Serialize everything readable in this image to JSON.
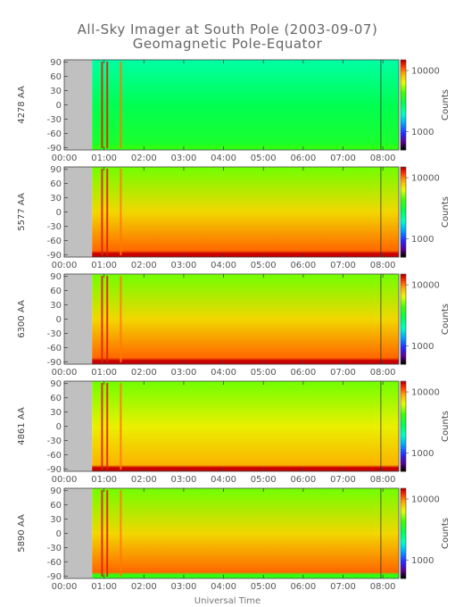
{
  "chart_data": {
    "type": "heatmap",
    "title": "All-Sky Imager at South Pole (2003-09-07)",
    "subtitle": "Geomagnetic Pole-Equator",
    "xlabel": "Universal Time",
    "x_ticks": [
      "00:00",
      "01:00",
      "02:00",
      "03:00",
      "04:00",
      "05:00",
      "06:00",
      "07:00",
      "08:00"
    ],
    "x_range_hours": [
      0,
      8.4
    ],
    "y_ticks": [
      90,
      60,
      30,
      0,
      -30,
      -60,
      -90
    ],
    "y_range": [
      -95,
      95
    ],
    "data_start_hour": 0.7,
    "spike_hours": [
      0.95,
      1.08,
      1.42
    ],
    "vline_hour": 7.95,
    "colorbar": {
      "ticks": [
        "10000",
        "1000"
      ],
      "label": "Counts",
      "log_range": [
        500,
        15000
      ]
    },
    "panels": [
      {
        "wavelength": "4278 AA",
        "bottom_counts": 3500,
        "top_counts": 2200,
        "edge_counts": 4000
      },
      {
        "wavelength": "5577 AA",
        "bottom_counts": 11000,
        "top_counts": 5000,
        "edge_counts": 16000
      },
      {
        "wavelength": "6300 AA",
        "bottom_counts": 11000,
        "top_counts": 5000,
        "edge_counts": 16000
      },
      {
        "wavelength": "4861 AA",
        "bottom_counts": 9000,
        "top_counts": 5000,
        "edge_counts": 16000
      },
      {
        "wavelength": "5890 AA",
        "bottom_counts": 11000,
        "top_counts": 5000,
        "edge_counts": 4000
      }
    ]
  }
}
